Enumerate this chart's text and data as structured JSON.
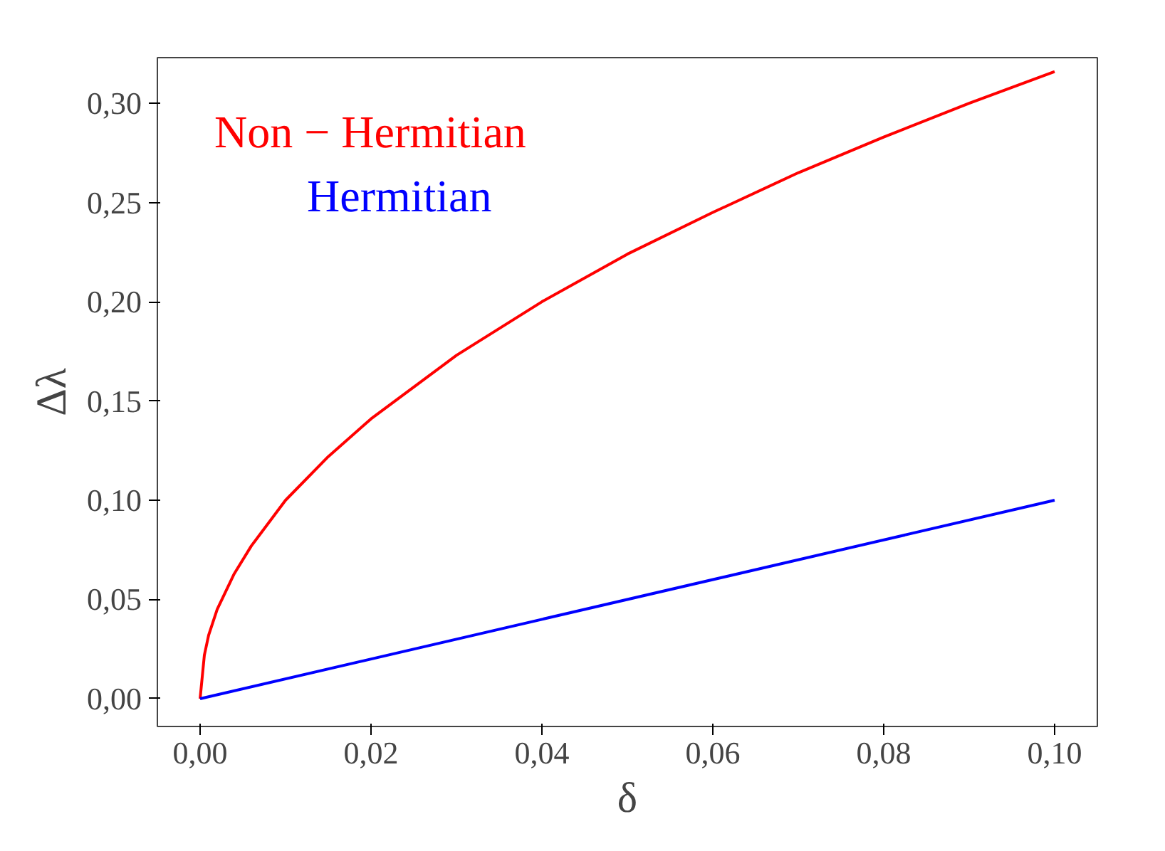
{
  "chart_data": {
    "type": "line",
    "xlabel": "δ",
    "ylabel": "Δλ",
    "xlim": [
      -0.005,
      0.105
    ],
    "ylim": [
      -0.014,
      0.323
    ],
    "xticks": [
      {
        "value": 0,
        "label": "0,00"
      },
      {
        "value": 0.02,
        "label": "0,02"
      },
      {
        "value": 0.04,
        "label": "0,04"
      },
      {
        "value": 0.06,
        "label": "0,06"
      },
      {
        "value": 0.08,
        "label": "0,08"
      },
      {
        "value": 0.1,
        "label": "0,10"
      }
    ],
    "yticks": [
      {
        "value": 0,
        "label": "0,00"
      },
      {
        "value": 0.05,
        "label": "0,05"
      },
      {
        "value": 0.1,
        "label": "0,10"
      },
      {
        "value": 0.15,
        "label": "0,15"
      },
      {
        "value": 0.2,
        "label": "0,20"
      },
      {
        "value": 0.25,
        "label": "0,25"
      },
      {
        "value": 0.3,
        "label": "0,30"
      }
    ],
    "legend": "top left",
    "grid": false,
    "series": [
      {
        "name": "Non − Hermitian",
        "color": "#ff0000",
        "x": [
          0,
          0.0005,
          0.001,
          0.002,
          0.004,
          0.006,
          0.01,
          0.015,
          0.02,
          0.03,
          0.04,
          0.05,
          0.06,
          0.07,
          0.08,
          0.09,
          0.1
        ],
        "values": [
          0,
          0.022,
          0.032,
          0.045,
          0.063,
          0.077,
          0.1,
          0.122,
          0.141,
          0.173,
          0.2,
          0.224,
          0.245,
          0.265,
          0.283,
          0.3,
          0.316
        ]
      },
      {
        "name": "Hermitian",
        "color": "#0000ff",
        "x": [
          0,
          0.1
        ],
        "values": [
          0,
          0.1
        ]
      }
    ]
  }
}
